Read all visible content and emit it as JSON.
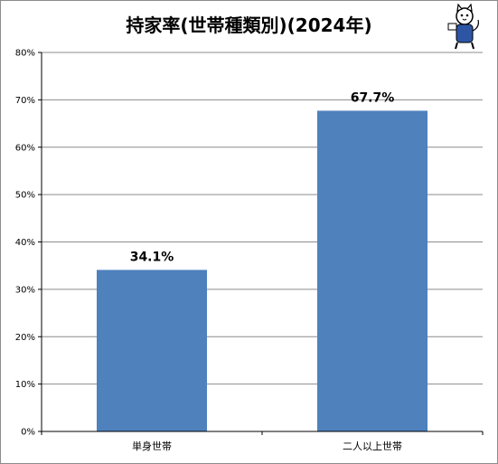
{
  "chart_data": {
    "type": "bar",
    "title": "持家率(世帯種類別)(2024年)",
    "categories": [
      "単身世帯",
      "二人以上世帯"
    ],
    "values": [
      34.1,
      67.7
    ],
    "data_labels": [
      "34.1%",
      "67.7%"
    ],
    "ylim": [
      0,
      80
    ],
    "y_ticks": [
      0,
      10,
      20,
      30,
      40,
      50,
      60,
      70,
      80
    ],
    "y_tick_labels": [
      "0%",
      "10%",
      "20%",
      "30%",
      "40%",
      "50%",
      "60%",
      "70%",
      "80%"
    ],
    "xlabel": "",
    "ylabel": "",
    "grid": true,
    "bar_color": "#4f81bd",
    "grid_color": "#8c8c8c"
  },
  "mascot": {
    "icon": "cat-mascot-icon"
  }
}
